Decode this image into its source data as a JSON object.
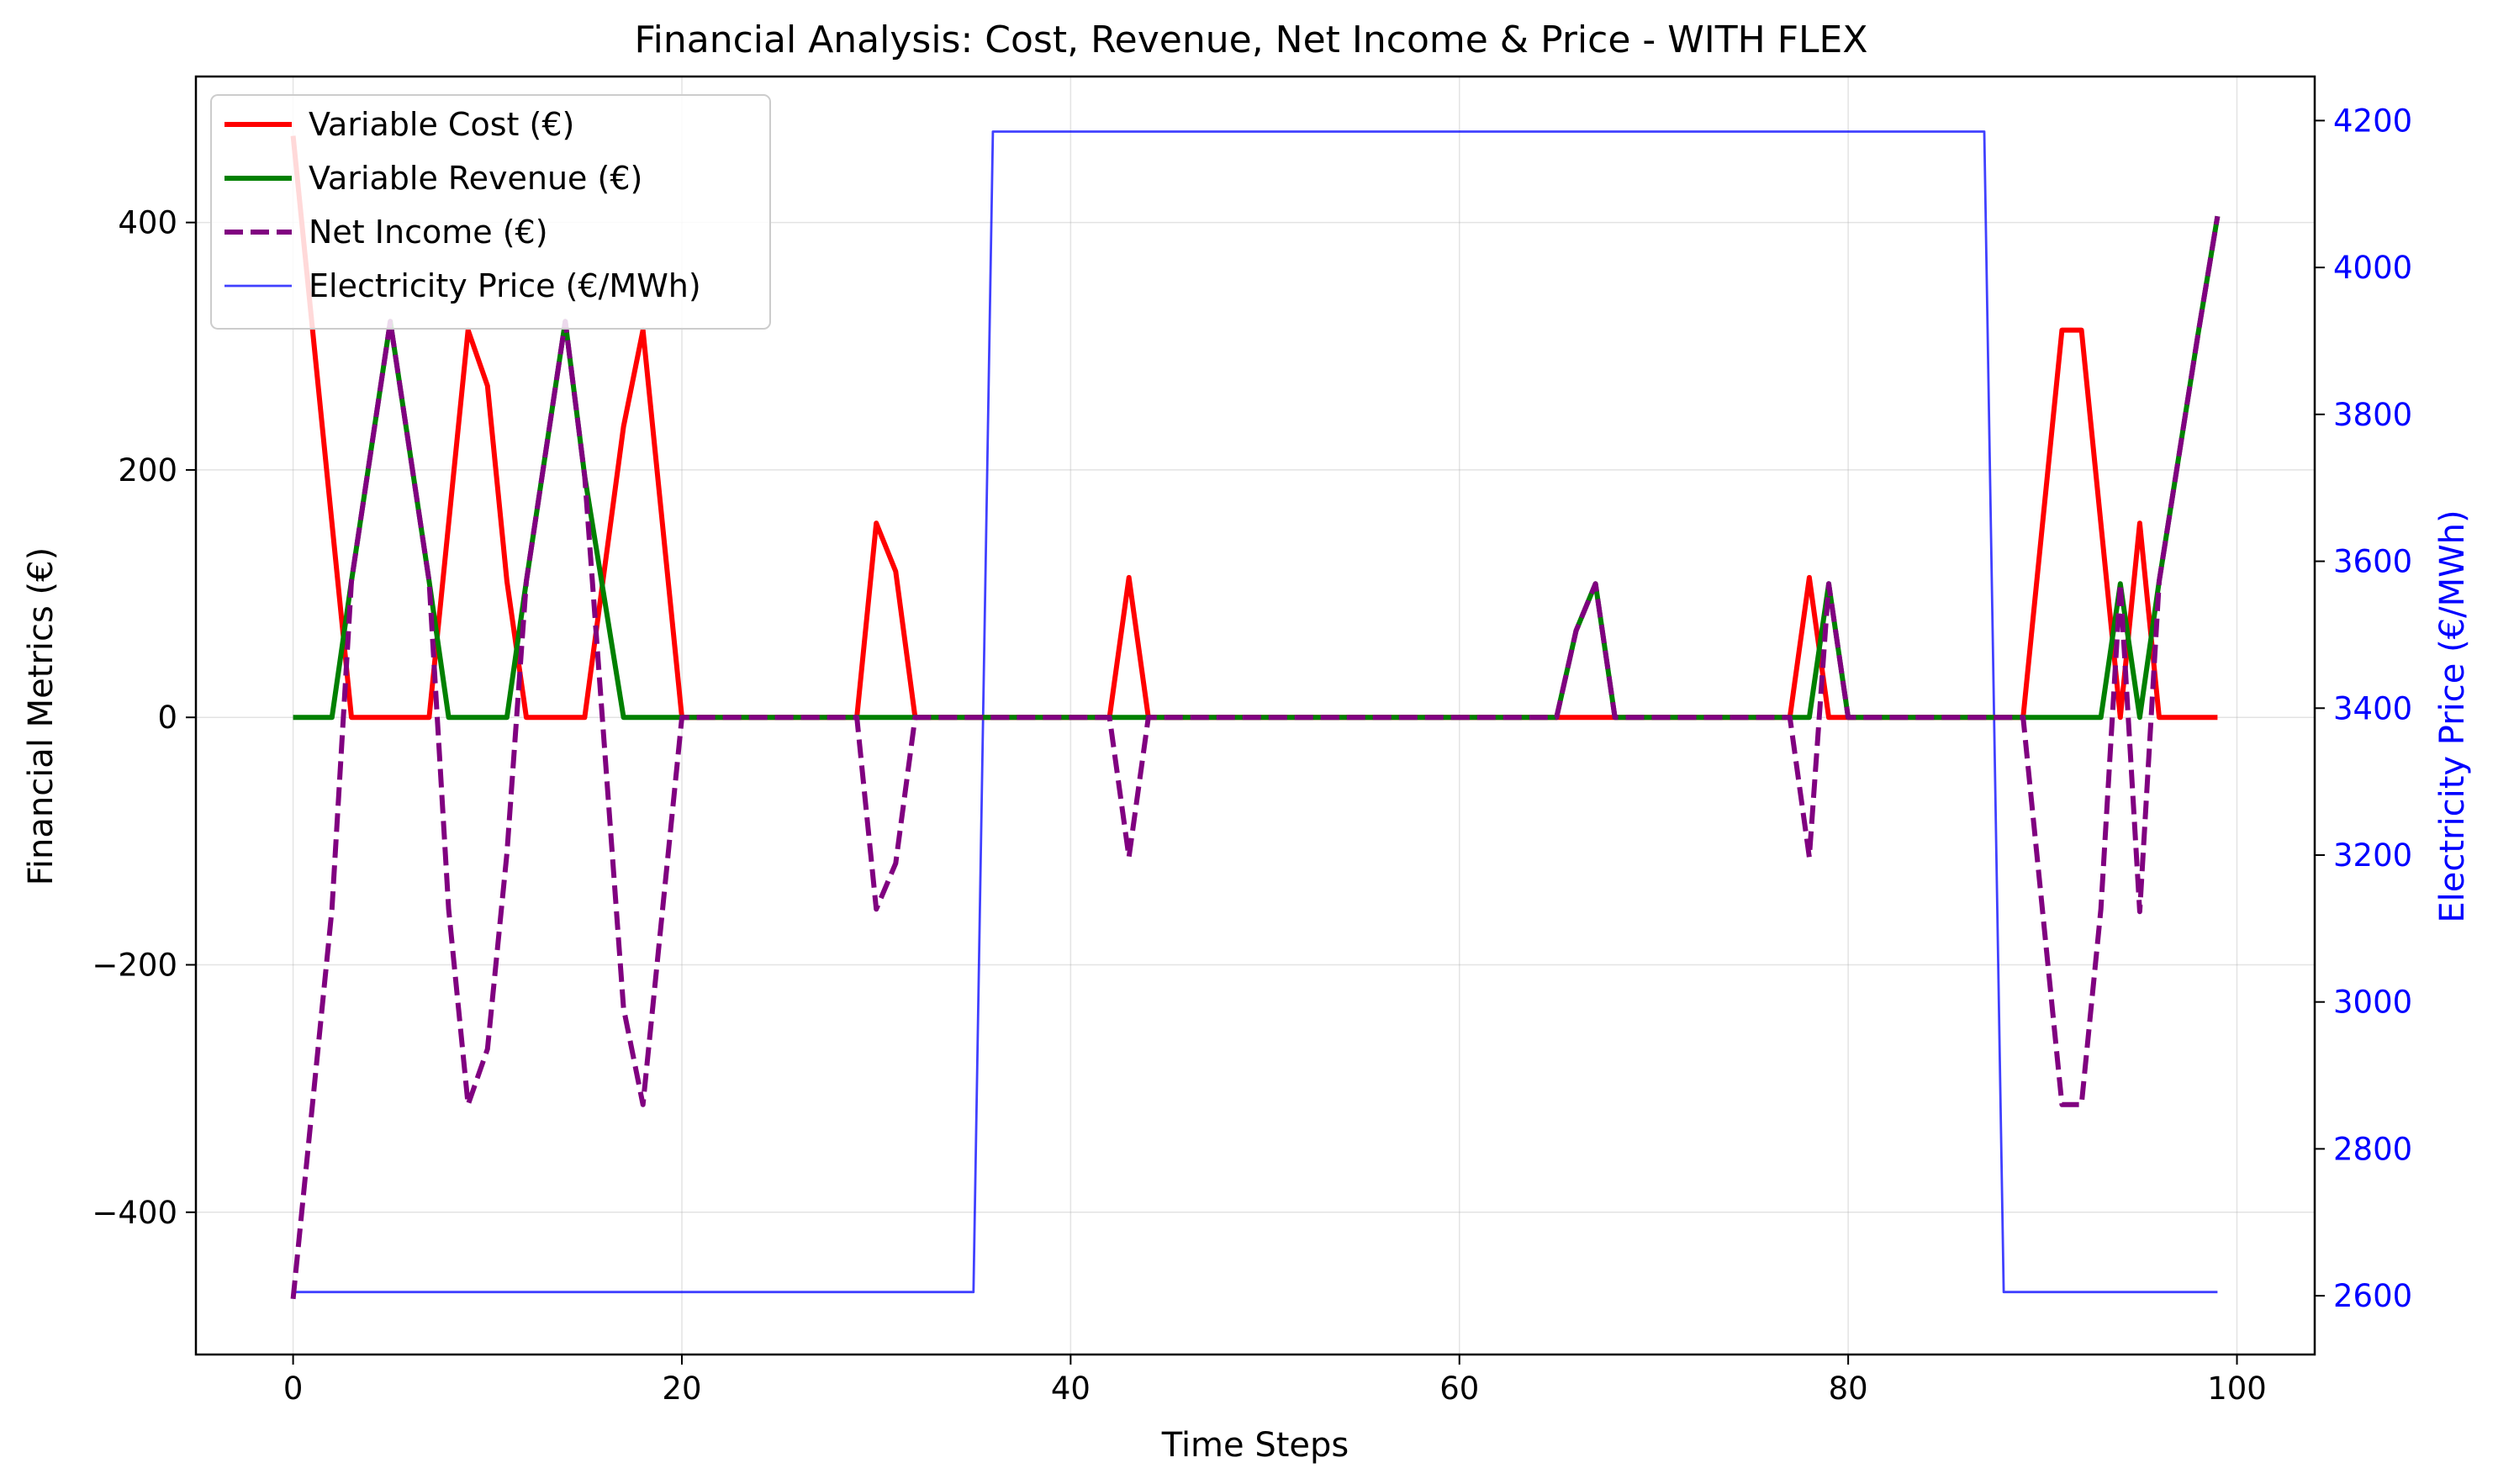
{
  "chart_data": {
    "type": "line",
    "title": "Financial Analysis: Cost, Revenue, Net Income & Price - WITH FLEX",
    "xlabel": "Time Steps",
    "ylabel": "Financial Metrics (€)",
    "ylabel_right": "Electricity Price (€/MWh)",
    "xlim": [
      -5,
      104
    ],
    "ylim": [
      -515,
      518
    ],
    "ylim_right": [
      2520,
      4260
    ],
    "xticks": [
      0,
      20,
      40,
      60,
      80,
      100
    ],
    "xtick_labels": [
      "0",
      "20",
      "40",
      "60",
      "80",
      "100"
    ],
    "yticks": [
      -400,
      -200,
      0,
      200,
      400
    ],
    "ytick_labels": [
      "−400",
      "−200",
      "0",
      "200",
      "400"
    ],
    "yticks_right": [
      2600,
      2800,
      3000,
      3200,
      3400,
      3600,
      3800,
      4000,
      4200
    ],
    "ytick_labels_right": [
      "2600",
      "2800",
      "3000",
      "3200",
      "3400",
      "3600",
      "3800",
      "4000",
      "4200"
    ],
    "grid": true,
    "legend_position": "top-left",
    "series": [
      {
        "name": "Variable Cost (€)",
        "color": "#ff0000",
        "style": "solid",
        "axis": "left",
        "points": [
          [
            0,
            470
          ],
          [
            3,
            0
          ],
          [
            7,
            0
          ],
          [
            9,
            313
          ],
          [
            10,
            268
          ],
          [
            11,
            110
          ],
          [
            12,
            0
          ],
          [
            15,
            0
          ],
          [
            17,
            235
          ],
          [
            18,
            313
          ],
          [
            20,
            0
          ],
          [
            29,
            0
          ],
          [
            30,
            157
          ],
          [
            31,
            118
          ],
          [
            32,
            0
          ],
          [
            42,
            0
          ],
          [
            43,
            113
          ],
          [
            44,
            0
          ],
          [
            77,
            0
          ],
          [
            78,
            113
          ],
          [
            79,
            0
          ],
          [
            89,
            0
          ],
          [
            91,
            313
          ],
          [
            92,
            313
          ],
          [
            94,
            0
          ],
          [
            95,
            157
          ],
          [
            96,
            0
          ],
          [
            99,
            0
          ]
        ]
      },
      {
        "name": "Variable Revenue (€)",
        "color": "#008000",
        "style": "solid",
        "axis": "left",
        "points": [
          [
            0,
            0
          ],
          [
            2,
            0
          ],
          [
            3,
            110
          ],
          [
            5,
            320
          ],
          [
            7,
            110
          ],
          [
            8,
            0
          ],
          [
            11,
            0
          ],
          [
            12,
            110
          ],
          [
            14,
            320
          ],
          [
            15,
            195
          ],
          [
            17,
            0
          ],
          [
            65,
            0
          ],
          [
            66,
            70
          ],
          [
            67,
            108
          ],
          [
            68,
            0
          ],
          [
            78,
            0
          ],
          [
            79,
            108
          ],
          [
            80,
            0
          ],
          [
            93,
            0
          ],
          [
            94,
            108
          ],
          [
            95,
            0
          ],
          [
            96,
            110
          ],
          [
            98,
            310
          ],
          [
            99,
            405
          ]
        ]
      },
      {
        "name": "Net Income (€)",
        "color": "#800080",
        "style": "dashed",
        "axis": "left",
        "points": [
          [
            0,
            -470
          ],
          [
            2,
            -155
          ],
          [
            3,
            110
          ],
          [
            5,
            320
          ],
          [
            7,
            110
          ],
          [
            8,
            -155
          ],
          [
            9,
            -313
          ],
          [
            10,
            -268
          ],
          [
            11,
            -110
          ],
          [
            12,
            110
          ],
          [
            14,
            320
          ],
          [
            15,
            195
          ],
          [
            17,
            -235
          ],
          [
            18,
            -313
          ],
          [
            20,
            0
          ],
          [
            29,
            0
          ],
          [
            30,
            -155
          ],
          [
            31,
            -118
          ],
          [
            32,
            0
          ],
          [
            42,
            0
          ],
          [
            43,
            -113
          ],
          [
            44,
            0
          ],
          [
            65,
            0
          ],
          [
            66,
            70
          ],
          [
            67,
            108
          ],
          [
            68,
            0
          ],
          [
            77,
            0
          ],
          [
            78,
            -113
          ],
          [
            79,
            108
          ],
          [
            80,
            0
          ],
          [
            89,
            0
          ],
          [
            91,
            -313
          ],
          [
            92,
            -313
          ],
          [
            93,
            -155
          ],
          [
            94,
            108
          ],
          [
            95,
            -157
          ],
          [
            96,
            110
          ],
          [
            98,
            310
          ],
          [
            99,
            405
          ]
        ]
      },
      {
        "name": "Electricity Price (€/MWh)",
        "color": "#0000ff",
        "style": "thin",
        "axis": "right",
        "points": [
          [
            0,
            2605
          ],
          [
            35,
            2605
          ],
          [
            36,
            4185
          ],
          [
            87,
            4185
          ],
          [
            88,
            2605
          ],
          [
            99,
            2605
          ]
        ]
      }
    ]
  }
}
